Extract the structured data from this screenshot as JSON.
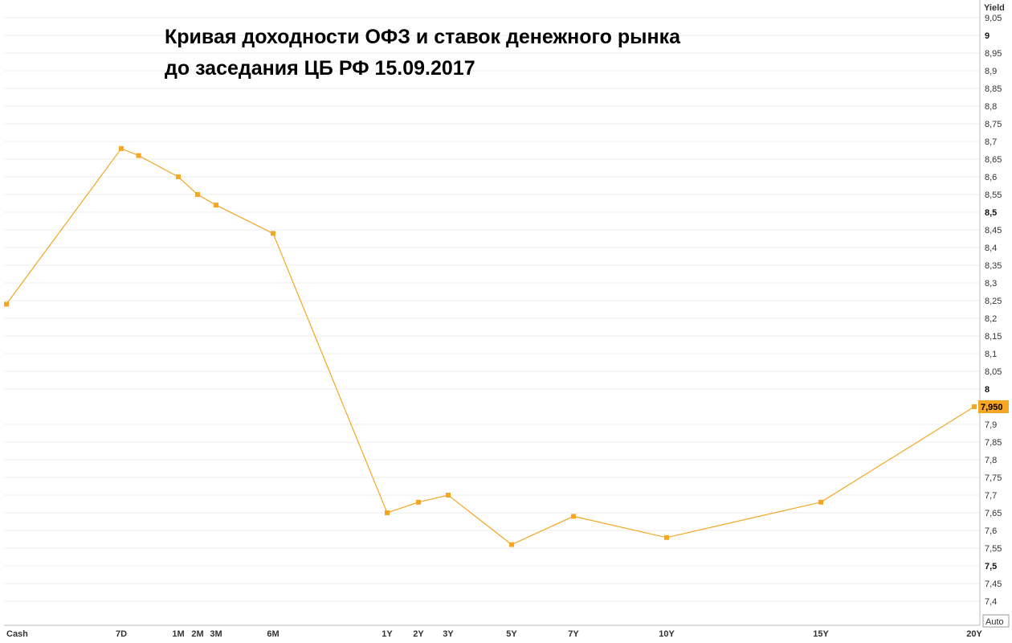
{
  "chart_data": {
    "type": "line",
    "title_lines": [
      "Кривая доходности ОФЗ и ставок денежного рынка",
      "до заседания ЦБ РФ 15.09.2017"
    ],
    "ylabel": "Yield",
    "ylim": [
      7.35,
      9.08
    ],
    "y_ticks": [
      "7,4",
      "7,45",
      "7,5",
      "7,55",
      "7,6",
      "7,65",
      "7,7",
      "7,75",
      "7,8",
      "7,85",
      "7,9",
      "8",
      "8,05",
      "8,1",
      "8,15",
      "8,2",
      "8,25",
      "8,3",
      "8,35",
      "8,4",
      "8,45",
      "8,5",
      "8,55",
      "8,6",
      "8,65",
      "8,7",
      "8,75",
      "8,8",
      "8,85",
      "8,9",
      "8,95",
      "9",
      "9,05"
    ],
    "y_tick_values": [
      7.4,
      7.45,
      7.5,
      7.55,
      7.6,
      7.65,
      7.7,
      7.75,
      7.8,
      7.85,
      7.9,
      8.0,
      8.05,
      8.1,
      8.15,
      8.2,
      8.25,
      8.3,
      8.35,
      8.4,
      8.45,
      8.5,
      8.55,
      8.6,
      8.65,
      8.7,
      8.75,
      8.8,
      8.85,
      8.9,
      8.95,
      9.0,
      9.05
    ],
    "y_bold_ticks": [
      "7,5",
      "8",
      "8,5",
      "9"
    ],
    "x_categories": [
      "Cash",
      "7D",
      "1M",
      "2M",
      "3M",
      "6M",
      "1Y",
      "2Y",
      "3Y",
      "5Y",
      "7Y",
      "10Y",
      "15Y",
      "20Y"
    ],
    "series": [
      {
        "color": "#f5a623",
        "points": [
          {
            "tenor": "Cash",
            "days": 0,
            "value": 8.24
          },
          {
            "tenor": "7D",
            "days": 7,
            "value": 8.68
          },
          {
            "tenor": "",
            "days": 14,
            "value": 8.66
          },
          {
            "tenor": "1M",
            "days": 30,
            "value": 8.6
          },
          {
            "tenor": "2M",
            "days": 60,
            "value": 8.55
          },
          {
            "tenor": "3M",
            "days": 90,
            "value": 8.52
          },
          {
            "tenor": "6M",
            "days": 180,
            "value": 8.44
          },
          {
            "tenor": "1Y",
            "days": 365,
            "value": 7.65
          },
          {
            "tenor": "2Y",
            "days": 730,
            "value": 7.68
          },
          {
            "tenor": "3Y",
            "days": 1095,
            "value": 7.7
          },
          {
            "tenor": "5Y",
            "days": 1825,
            "value": 7.56
          },
          {
            "tenor": "7Y",
            "days": 2555,
            "value": 7.64
          },
          {
            "tenor": "10Y",
            "days": 3650,
            "value": 7.58
          },
          {
            "tenor": "15Y",
            "days": 5475,
            "value": 7.68
          },
          {
            "tenor": "20Y",
            "days": 7300,
            "value": 7.95
          }
        ]
      }
    ],
    "last_value_label": "7,950",
    "grid": true,
    "auto_label": "Auto"
  }
}
